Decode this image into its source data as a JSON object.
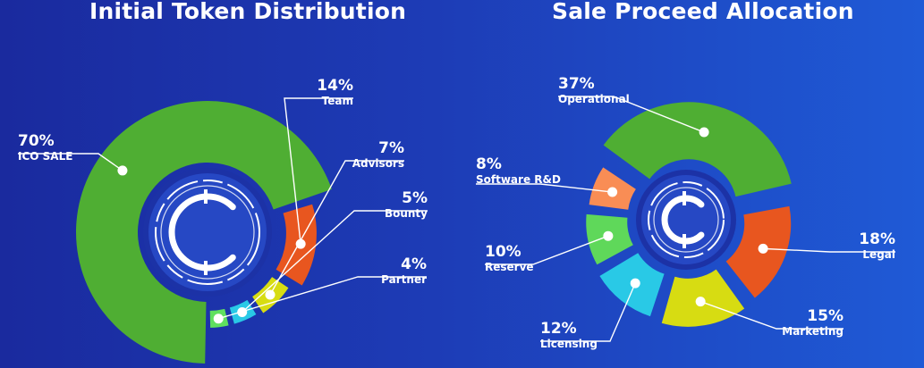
{
  "chart_data": [
    {
      "type": "pie",
      "title": "Initial Token Distribution",
      "categories": [
        "ICO SALE",
        "Team",
        "Advisors",
        "Bounty",
        "Partner"
      ],
      "values": [
        70,
        14,
        7,
        5,
        4
      ],
      "percent_labels": [
        "70%",
        "14%",
        "7%",
        "5%",
        "4%"
      ],
      "colors": [
        "#4fae33",
        "#e8561f",
        "#d7dc12",
        "#29c9e6",
        "#5fe05f"
      ]
    },
    {
      "type": "pie",
      "title": "Sale Proceed Allocation",
      "categories": [
        "Operational",
        "Legal",
        "Marketing",
        "Licensing",
        "Reserve",
        "Software R&D"
      ],
      "values": [
        37,
        18,
        15,
        12,
        10,
        8
      ],
      "percent_labels": [
        "37%",
        "18%",
        "15%",
        "12%",
        "10%",
        "8%"
      ],
      "colors": [
        "#4fae33",
        "#e8561f",
        "#d7dc12",
        "#29c9e6",
        "#5fd85a",
        "#f98d55"
      ]
    }
  ]
}
